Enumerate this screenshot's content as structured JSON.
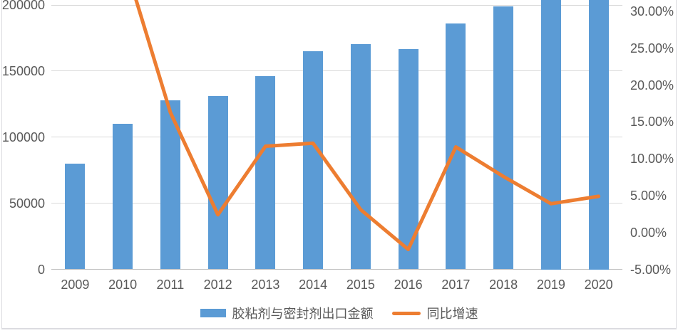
{
  "chart_data": {
    "type": "bar-line-combo",
    "title": "",
    "categories": [
      "2009",
      "2010",
      "2011",
      "2012",
      "2013",
      "2014",
      "2015",
      "2016",
      "2017",
      "2018",
      "2019",
      "2020"
    ],
    "series": [
      {
        "name": "胶粘剂与密封剂出口金额",
        "type": "bar",
        "axis": "left",
        "color": "#5B9BD5",
        "values": [
          80000,
          110000,
          128000,
          131000,
          146000,
          165000,
          170500,
          166500,
          186000,
          199000,
          207000,
          217000
        ]
      },
      {
        "name": "同比增速",
        "type": "line",
        "axis": "right",
        "color": "#ED7D31",
        "values": [
          null,
          37.5,
          16.3,
          2.4,
          11.7,
          12.1,
          3.1,
          -2.3,
          11.6,
          7.6,
          3.9,
          4.9
        ]
      }
    ],
    "left_axis": {
      "tick_values": [
        0,
        50000,
        100000,
        150000,
        200000
      ],
      "tick_labels": [
        "0",
        "50000",
        "100000",
        "150000",
        "200000"
      ]
    },
    "right_axis": {
      "tick_values": [
        -5,
        0,
        5,
        10,
        15,
        20,
        25,
        30
      ],
      "tick_labels": [
        "-5.00%",
        "0.00%",
        "5.00%",
        "10.00%",
        "15.00%",
        "20.00%",
        "25.00%",
        "30.00%"
      ]
    },
    "grid": true,
    "legend_position": "bottom",
    "notes": "top of plot cropped; 2019 and 2020 bars and 2010 line point extend above visible area"
  },
  "colors": {
    "bar": "#5B9BD5",
    "line": "#ED7D31",
    "gridline": "#D9D9D9",
    "axis_line": "#BFBFBF",
    "text": "#595959",
    "border": "#DCDCE0"
  }
}
